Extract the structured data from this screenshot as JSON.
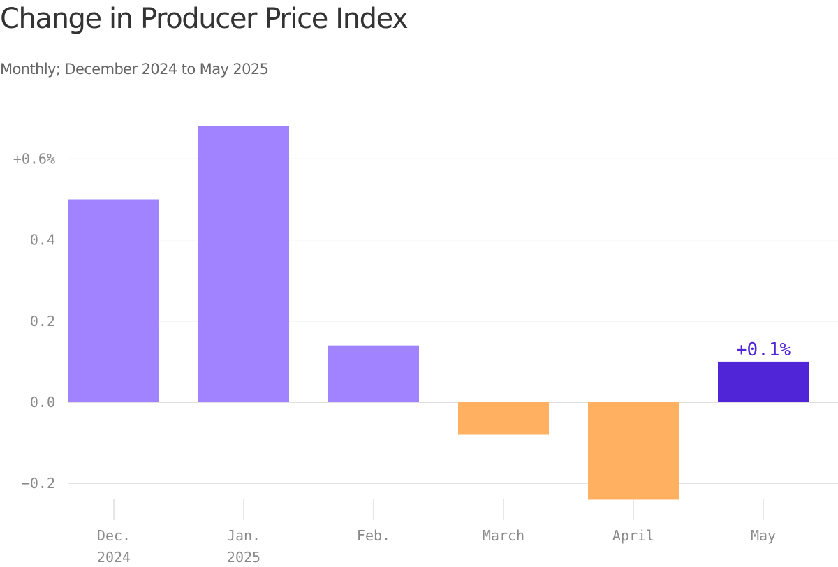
{
  "title": "Change in Producer Price Index",
  "subtitle": "Monthly; December 2024 to May 2025",
  "chart_data": {
    "type": "bar",
    "title": "Change in Producer Price Index",
    "subtitle": "Monthly; December 2024 to May 2025",
    "xlabel": "",
    "ylabel": "",
    "categories": [
      "Dec. 2024",
      "Jan. 2025",
      "Feb.",
      "March",
      "April",
      "May"
    ],
    "category_label_lines": [
      [
        "Dec.",
        "2024"
      ],
      [
        "Jan.",
        "2025"
      ],
      [
        "Feb."
      ],
      [
        "March"
      ],
      [
        "April"
      ],
      [
        "May"
      ]
    ],
    "values": [
      0.5,
      0.68,
      0.14,
      -0.08,
      -0.24,
      0.1
    ],
    "ylim": [
      -0.26,
      0.7
    ],
    "yticks": [
      -0.2,
      0.0,
      0.2,
      0.4,
      0.6
    ],
    "ytick_labels": [
      "−0.2",
      "0.0",
      "0.2",
      "0.4",
      "+0.6%"
    ],
    "annotations": [
      {
        "category": "May",
        "text": "+0.1%"
      }
    ],
    "highlight_category": "May",
    "grid": true,
    "legend": "none",
    "colors": {
      "positive": "#a183ff",
      "negative": "#ffb060",
      "highlight": "#5025d8",
      "gridline": "#dcdcdc",
      "zero_line": "#bfbfbf",
      "tick_mark": "#cfcfcf"
    }
  }
}
